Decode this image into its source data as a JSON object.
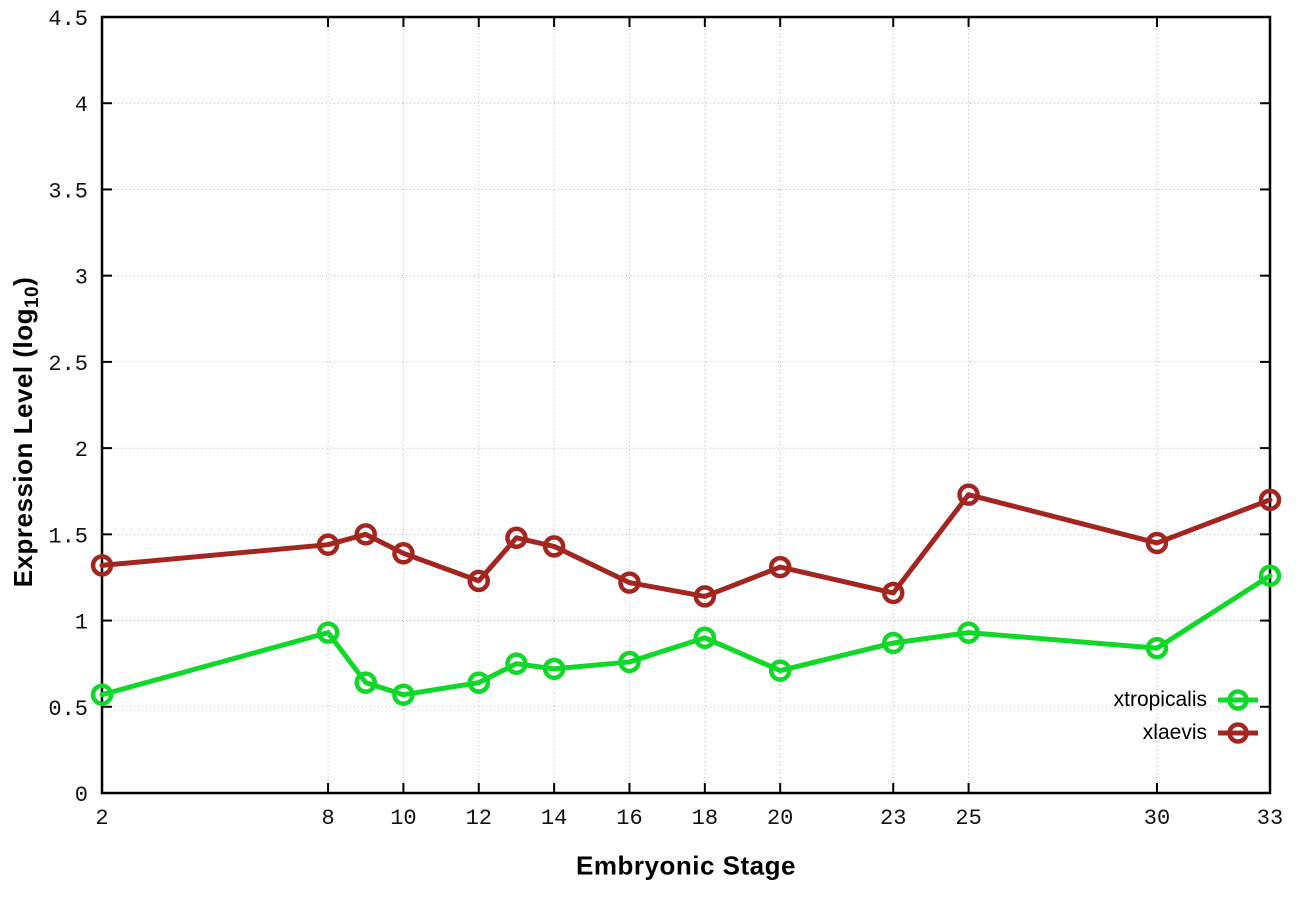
{
  "chart_data": {
    "type": "line",
    "title": "",
    "xlabel": "Embryonic Stage",
    "ylabel": {
      "main": "Expression Level (log",
      "sub": "10",
      "close": ")"
    },
    "x": [
      2,
      8,
      9,
      10,
      12,
      13,
      14,
      16,
      18,
      20,
      23,
      25,
      30,
      33
    ],
    "series": [
      {
        "name": "xtropicalis",
        "color": "#0fd828",
        "values": [
          0.57,
          0.93,
          0.64,
          0.57,
          0.64,
          0.75,
          0.72,
          0.76,
          0.9,
          0.71,
          0.87,
          0.93,
          0.84,
          1.26
        ]
      },
      {
        "name": "xlaevis",
        "color": "#a2261f",
        "values": [
          1.32,
          1.44,
          1.5,
          1.39,
          1.23,
          1.48,
          1.43,
          1.22,
          1.14,
          1.31,
          1.16,
          1.73,
          1.45,
          1.7
        ]
      }
    ],
    "xlim": [
      2,
      33
    ],
    "ylim": [
      0,
      4.5
    ],
    "xticks": {
      "values": [
        2,
        8,
        10,
        12,
        14,
        16,
        18,
        20,
        23,
        25,
        30,
        33
      ],
      "labels": [
        "2",
        "8",
        "10",
        "12",
        "14",
        "16",
        "18",
        "20",
        "23",
        "25",
        "30",
        "33"
      ]
    },
    "yticks": {
      "values": [
        0,
        0.5,
        1,
        1.5,
        2,
        2.5,
        3,
        3.5,
        4,
        4.5
      ],
      "labels": [
        "0",
        "0.5",
        "1",
        "1.5",
        "2",
        "2.5",
        "3",
        "3.5",
        "4",
        "4.5"
      ]
    },
    "grid": true,
    "grid_color": "#b5b5b5",
    "border_color": "#000000",
    "background": "#ffffff",
    "legend_position": "inside-bottom-right"
  }
}
